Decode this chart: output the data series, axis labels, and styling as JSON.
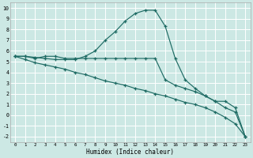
{
  "title": "",
  "xlabel": "Humidex (Indice chaleur)",
  "bg_color": "#cce8e4",
  "line_color": "#1e6b64",
  "grid_color": "#b0d8d2",
  "xlim": [
    -0.5,
    23.5
  ],
  "ylim": [
    -2.5,
    10.5
  ],
  "xticks": [
    0,
    1,
    2,
    3,
    4,
    5,
    6,
    7,
    8,
    9,
    10,
    11,
    12,
    13,
    14,
    15,
    16,
    17,
    18,
    19,
    20,
    21,
    22,
    23
  ],
  "yticks": [
    -2,
    -1,
    0,
    1,
    2,
    3,
    4,
    5,
    6,
    7,
    8,
    9,
    10
  ],
  "series": [
    {
      "x": [
        0,
        1,
        2,
        3,
        4,
        5,
        6,
        7,
        8,
        9,
        10,
        11,
        12,
        13,
        14,
        15,
        16,
        17,
        18,
        19,
        20,
        21,
        22,
        23
      ],
      "y": [
        5.5,
        5.5,
        5.4,
        5.3,
        5.2,
        5.2,
        5.2,
        5.5,
        6.0,
        7.0,
        7.8,
        8.8,
        9.5,
        9.8,
        9.8,
        8.3,
        5.3,
        3.3,
        2.5,
        1.8,
        1.3,
        1.3,
        0.7,
        -2.0
      ]
    },
    {
      "x": [
        0,
        1,
        2,
        3,
        4,
        5,
        6,
        7,
        8,
        9,
        10,
        11,
        12,
        13,
        14,
        15,
        16,
        17,
        18,
        19,
        20,
        21,
        22,
        23
      ],
      "y": [
        5.5,
        5.5,
        5.3,
        5.5,
        5.5,
        5.3,
        5.3,
        5.3,
        5.3,
        5.3,
        5.3,
        5.3,
        5.3,
        5.3,
        5.3,
        3.3,
        2.8,
        2.5,
        2.2,
        1.8,
        1.3,
        0.7,
        0.3,
        -2.0
      ]
    },
    {
      "x": [
        0,
        1,
        2,
        3,
        4,
        5,
        6,
        7,
        8,
        9,
        10,
        11,
        12,
        13,
        14,
        15,
        16,
        17,
        18,
        19,
        20,
        21,
        22,
        23
      ],
      "y": [
        5.5,
        5.2,
        4.9,
        4.7,
        4.5,
        4.3,
        4.0,
        3.8,
        3.5,
        3.2,
        3.0,
        2.8,
        2.5,
        2.3,
        2.0,
        1.8,
        1.5,
        1.2,
        1.0,
        0.7,
        0.3,
        -0.2,
        -0.8,
        -2.0
      ]
    }
  ]
}
